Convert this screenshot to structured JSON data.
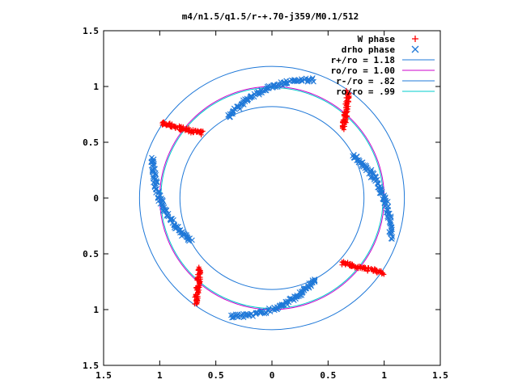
{
  "chart_data": {
    "type": "scatter",
    "title": "m4/n1.5/q1.5/r-+.70-j359/M0.1/512",
    "xlim": [
      -1.5,
      1.5
    ],
    "ylim": [
      -1.5,
      1.5
    ],
    "x_ticks": [
      -1.5,
      -1,
      -0.5,
      0,
      0.5,
      1,
      1.5
    ],
    "y_ticks": [
      -1.5,
      -1,
      -0.5,
      0,
      0.5,
      1,
      1.5
    ],
    "x_tick_labels": [
      "1.5",
      "1",
      "0.5",
      "0",
      "0.5",
      "1",
      "1.5"
    ],
    "y_tick_labels": [
      "1.5",
      "1",
      "0.5",
      "0",
      "0.5",
      "1",
      "1.5"
    ],
    "legend_position": "top-right",
    "series": [
      {
        "name": "W phase",
        "kind": "points",
        "marker": "plus",
        "color": "#ff0000",
        "segments": [
          {
            "x": [
              0.68,
              0.64
            ],
            "y": [
              0.95,
              0.62
            ]
          },
          {
            "x": [
              -0.99,
              -0.62
            ],
            "y": [
              0.67,
              0.58
            ]
          },
          {
            "x": [
              -0.68,
              -0.64
            ],
            "y": [
              -0.95,
              -0.62
            ]
          },
          {
            "x": [
              0.99,
              0.62
            ],
            "y": [
              -0.67,
              -0.58
            ]
          }
        ]
      },
      {
        "name": "drho phase",
        "kind": "points",
        "marker": "cross",
        "color": "#1f78d8",
        "arcs": [
          {
            "r_start": 1.12,
            "theta_start": 71,
            "r_end": 0.82,
            "theta_end": 118
          },
          {
            "r_start": 1.12,
            "theta_start": 161,
            "r_end": 0.82,
            "theta_end": 208
          },
          {
            "r_start": 1.12,
            "theta_start": 251,
            "r_end": 0.82,
            "theta_end": 298
          },
          {
            "r_start": 1.12,
            "theta_start": 341,
            "r_end": 0.82,
            "theta_end": 28
          }
        ]
      },
      {
        "name": "r+/ro = 1.18",
        "kind": "circle",
        "radius": 1.18,
        "color": "#1f78d8"
      },
      {
        "name": "ro/ro = 1.00",
        "kind": "circle",
        "radius": 1.0,
        "color": "#cc00cc"
      },
      {
        "name": "r-/ro = .82",
        "kind": "circle",
        "radius": 0.82,
        "color": "#1f78d8"
      },
      {
        "name": "ro/ro = .99",
        "kind": "circle",
        "radius": 0.99,
        "color": "#00cccc"
      }
    ]
  }
}
